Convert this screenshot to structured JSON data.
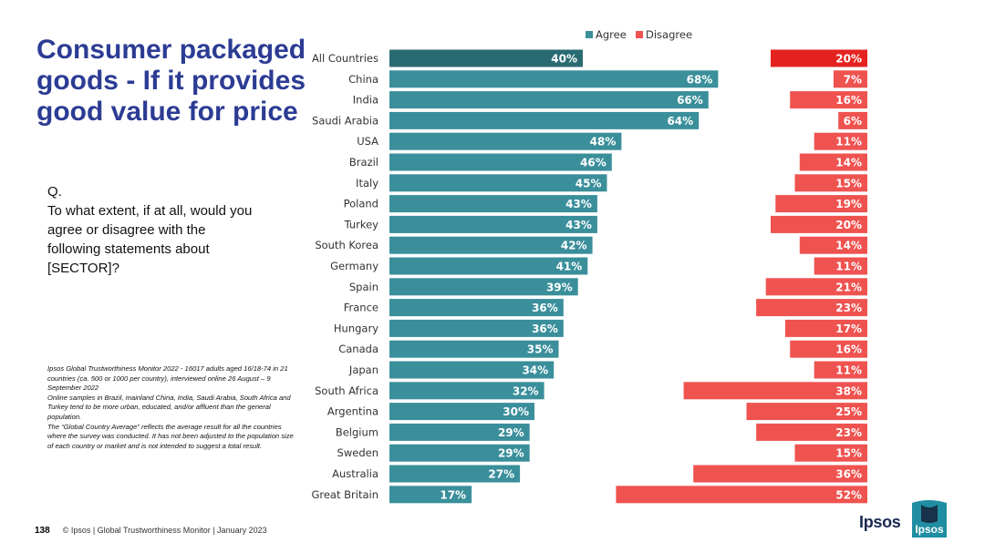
{
  "slide": {
    "title": "Consumer packaged goods - If it provides good value for price",
    "question_label": "Q.",
    "question_text": "To what extent, if at all, would you agree or disagree with the following statements about [SECTOR]?",
    "notes": [
      "Ipsos Global Trustworthiness Monitor 2022 - 16017 adults aged 16/18-74 in 21 countries (ca. 500 or 1000 per country), interviewed online 26 August – 9 September 2022",
      "Online samples in Brazil, mainland China, India, Saudi Arabia, South Africa and Turkey tend to be more urban, educated, and/or affluent than the general population.",
      "The “Global Country Average” reflects the average result for all the countries where the survey was conducted. It has not been adjusted to the population size of each country or market and is not intended to suggest a total result."
    ],
    "page_number": "138",
    "footer_text": "© Ipsos | Global Trustworthiness Monitor | January 2023",
    "brand": "Ipsos",
    "logo_text": "Ipsos"
  },
  "colors": {
    "agree": "#3a8f9b",
    "agree_highlight": "#2a6b73",
    "disagree": "#ef5350",
    "disagree_highlight": "#e42320",
    "title": "#2c3c94",
    "logo": "#1f8ea3"
  },
  "chart_data": {
    "type": "bar",
    "orientation": "horizontal",
    "legend_position": "top",
    "categories": [
      "All Countries",
      "China",
      "India",
      "Saudi Arabia",
      "USA",
      "Brazil",
      "Italy",
      "Poland",
      "Turkey",
      "South Korea",
      "Germany",
      "Spain",
      "France",
      "Hungary",
      "Canada",
      "Japan",
      "South Africa",
      "Argentina",
      "Belgium",
      "Sweden",
      "Australia",
      "Great Britain"
    ],
    "series": [
      {
        "name": "Agree",
        "values": [
          40,
          68,
          66,
          64,
          48,
          46,
          45,
          43,
          43,
          42,
          41,
          39,
          36,
          36,
          35,
          34,
          32,
          30,
          29,
          29,
          27,
          17
        ]
      },
      {
        "name": "Disagree",
        "values": [
          20,
          7,
          16,
          6,
          11,
          14,
          15,
          19,
          20,
          14,
          11,
          21,
          23,
          17,
          16,
          11,
          38,
          25,
          23,
          15,
          36,
          52
        ]
      }
    ],
    "value_suffix": "%",
    "highlight_category": "All Countries"
  }
}
